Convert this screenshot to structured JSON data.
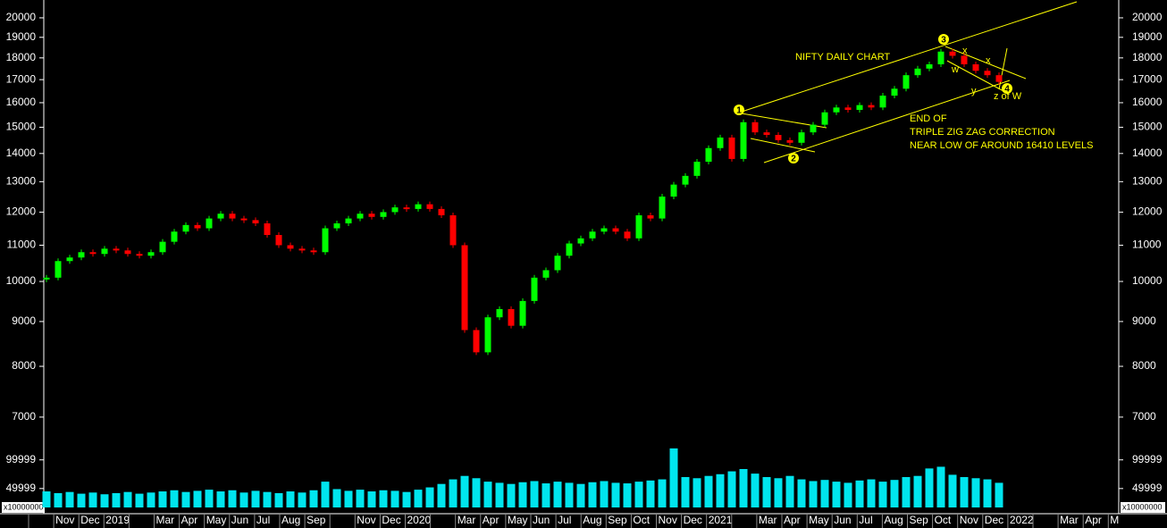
{
  "chart_data": {
    "type": "price-volume",
    "title": "NIFTY DAILY CHART",
    "annotations": [
      "END OF",
      "TRIPLE ZIG ZAG CORRECTION",
      "NEAR LOW OF AROUND 16410 LEVELS"
    ],
    "wave_labels": [
      "1",
      "2",
      "3",
      "4"
    ],
    "sub_wave_labels": [
      "x",
      "w",
      "x",
      "y",
      "z of W"
    ],
    "volume_unit": "x10000000",
    "log_scale": true,
    "categories": [
      null,
      "Nov",
      "Dec",
      "2019",
      null,
      "Mar",
      "Apr",
      "May",
      "Jun",
      "Jul",
      "Aug",
      "Sep",
      null,
      "Nov",
      "Dec",
      "2020",
      null,
      "Mar",
      "Apr",
      "May",
      "Jun",
      "Jul",
      "Aug",
      "Sep",
      "Oct",
      "Nov",
      "Dec",
      "2021",
      null,
      "Mar",
      "Apr",
      "May",
      "Jun",
      "Jul",
      "Aug",
      "Sep",
      "Oct",
      "Nov",
      "Dec",
      "2022",
      null,
      "Mar",
      "Apr",
      "M"
    ],
    "price": {
      "up_color": "#00ff00",
      "down_color": "#ff0000",
      "values": [
        10100,
        10550,
        10650,
        10800,
        10750,
        10900,
        10850,
        10750,
        10700,
        10800,
        11100,
        11400,
        11600,
        11500,
        11800,
        11950,
        11800,
        11750,
        11650,
        11300,
        11000,
        10900,
        10850,
        10800,
        11500,
        11650,
        11800,
        11950,
        11850,
        12000,
        12150,
        12100,
        12250,
        12100,
        11900,
        11000,
        8800,
        8300,
        9100,
        9300,
        8900,
        9500,
        10100,
        10300,
        10700,
        11050,
        11200,
        11400,
        11500,
        11400,
        11200,
        11900,
        11800,
        12500,
        12900,
        13200,
        13700,
        14200,
        14600,
        13800,
        15200,
        14800,
        14700,
        14500,
        14400,
        14800,
        15100,
        15600,
        15800,
        15700,
        15900,
        15800,
        16300,
        16600,
        17200,
        17500,
        17700,
        18300,
        18100,
        17700,
        17400,
        17200,
        16900
      ]
    },
    "volume": {
      "color": "#00e5ee",
      "axis": "y2",
      "values": [
        45000,
        42000,
        44000,
        41000,
        43000,
        40000,
        42000,
        44000,
        41000,
        43000,
        45000,
        47000,
        44000,
        46000,
        48000,
        45000,
        47000,
        43000,
        46000,
        44000,
        42000,
        45000,
        43000,
        47000,
        62000,
        49000,
        46000,
        48000,
        45000,
        47000,
        46000,
        44000,
        48000,
        52000,
        58000,
        66000,
        72000,
        68000,
        62000,
        60000,
        58000,
        61000,
        63000,
        59000,
        62000,
        60000,
        58000,
        61000,
        63000,
        60000,
        59000,
        62000,
        64000,
        66000,
        120000,
        70000,
        68000,
        72000,
        75000,
        80000,
        84000,
        76000,
        70000,
        68000,
        72000,
        66000,
        63000,
        65000,
        62000,
        60000,
        64000,
        66000,
        62000,
        65000,
        70000,
        72000,
        85000,
        88000,
        74000,
        70000,
        68000,
        66000,
        60000
      ]
    },
    "ylim": [
      6630,
      20960
    ],
    "yticks": [
      7000,
      8000,
      9000,
      10000,
      11000,
      12000,
      13000,
      14000,
      15000,
      16000,
      17000,
      18000,
      19000,
      20000
    ],
    "y2lim": [
      17000,
      151000
    ],
    "y2ticks": [
      49999,
      99999
    ]
  }
}
